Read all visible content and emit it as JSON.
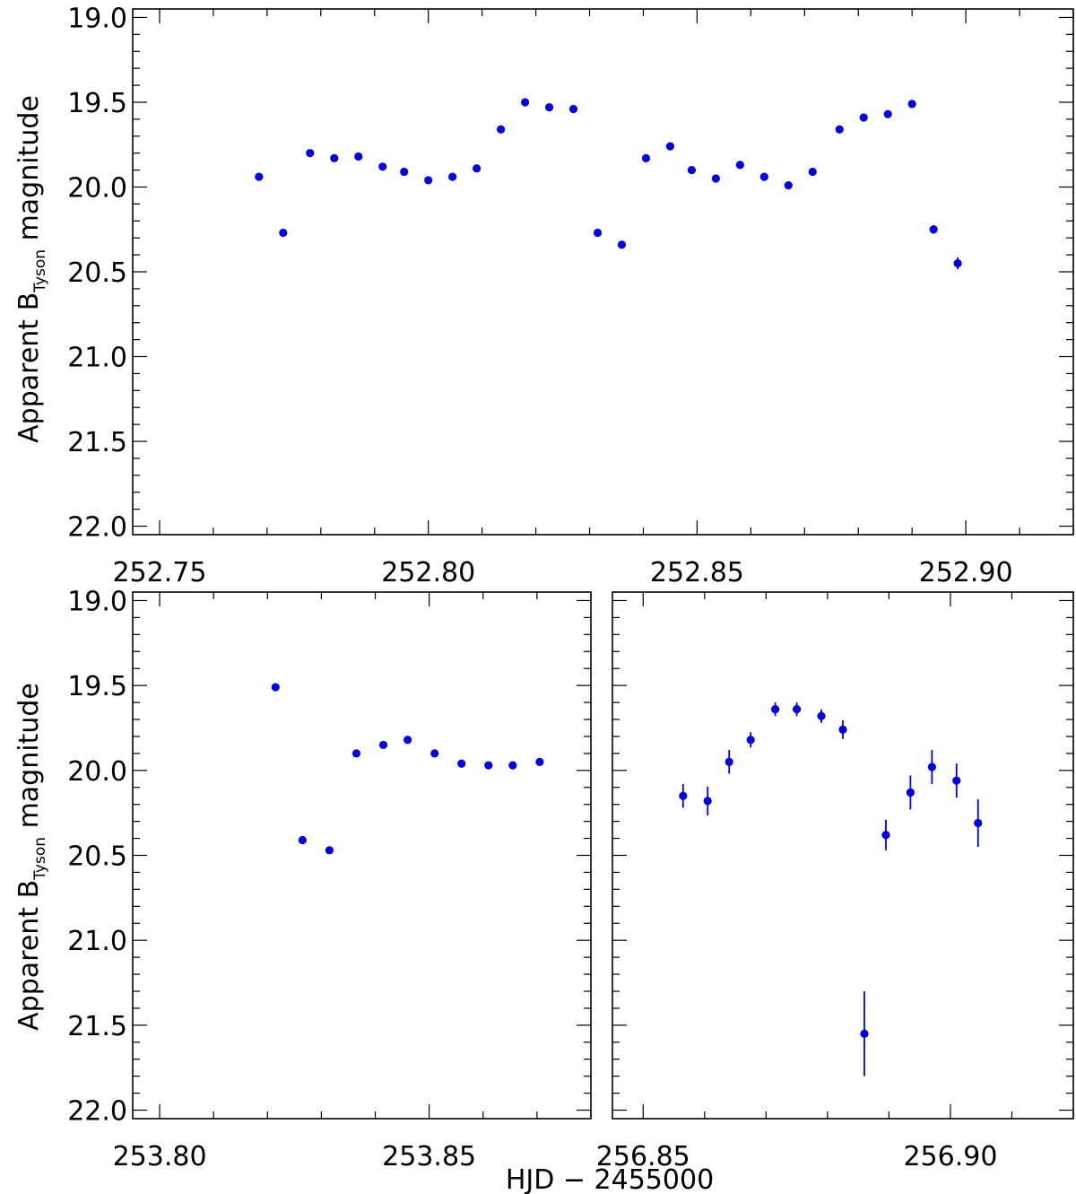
{
  "figure": {
    "xlabel": "HJD − 2455000",
    "ylabel_prefix": "Apparent B",
    "ylabel_sub": "Tyson",
    "ylabel_suffix": " magnitude",
    "point_color": "#0000e6"
  },
  "chart_data": [
    {
      "type": "scatter",
      "panel": "top",
      "xlim": [
        252.745,
        252.92
      ],
      "ylim": [
        22.05,
        18.95
      ],
      "y_inverted": true,
      "x_ticks": [
        "252.75",
        "252.80",
        "252.85",
        "252.90"
      ],
      "y_ticks": [
        "19.0",
        "19.5",
        "20.0",
        "20.5",
        "21.0",
        "21.5",
        "22.0"
      ],
      "series": [
        {
          "x": [
            252.7685,
            252.773,
            252.778,
            252.7825,
            252.787,
            252.7915,
            252.7955,
            252.8,
            252.8045,
            252.809,
            252.8135,
            252.818,
            252.8225,
            252.827,
            252.8315,
            252.836,
            252.8405,
            252.845,
            252.849,
            252.8535,
            252.858,
            252.8625,
            252.867,
            252.8715,
            252.8765,
            252.881,
            252.8855,
            252.89,
            252.894,
            252.8985
          ],
          "y": [
            19.94,
            20.27,
            19.8,
            19.83,
            19.82,
            19.88,
            19.91,
            19.96,
            19.94,
            19.89,
            19.66,
            19.5,
            19.53,
            19.54,
            20.27,
            20.34,
            19.83,
            19.76,
            19.9,
            19.95,
            19.87,
            19.94,
            19.99,
            19.91,
            19.66,
            19.59,
            19.57,
            19.51,
            20.25,
            20.45
          ],
          "yerr": [
            0.02,
            0.015,
            0.01,
            0.01,
            0.01,
            0.01,
            0.01,
            0.01,
            0.01,
            0.01,
            0.01,
            0.01,
            0.01,
            0.01,
            0.01,
            0.01,
            0.01,
            0.01,
            0.01,
            0.01,
            0.01,
            0.01,
            0.01,
            0.01,
            0.01,
            0.01,
            0.01,
            0.01,
            0.025,
            0.035
          ]
        }
      ]
    },
    {
      "type": "scatter",
      "panel": "bottom-left",
      "xlim": [
        253.795,
        253.88
      ],
      "ylim": [
        22.05,
        18.95
      ],
      "y_inverted": true,
      "x_ticks": [
        "253.80",
        "253.85"
      ],
      "y_ticks": [
        "19.0",
        "19.5",
        "20.0",
        "20.5",
        "21.0",
        "21.5",
        "22.0"
      ],
      "series": [
        {
          "x": [
            253.8215,
            253.8265,
            253.8315,
            253.8365,
            253.8415,
            253.846,
            253.851,
            253.856,
            253.861,
            253.8655,
            253.8705
          ],
          "y": [
            19.51,
            20.41,
            20.47,
            19.9,
            19.85,
            19.82,
            19.9,
            19.96,
            19.97,
            19.97,
            19.95
          ],
          "yerr": [
            0.01,
            0.01,
            0.01,
            0.01,
            0.01,
            0.01,
            0.01,
            0.01,
            0.01,
            0.01,
            0.01
          ]
        }
      ]
    },
    {
      "type": "scatter",
      "panel": "bottom-right",
      "xlim": [
        256.845,
        256.92
      ],
      "ylim": [
        22.05,
        18.95
      ],
      "y_inverted": true,
      "x_ticks": [
        "256.85",
        "256.90"
      ],
      "y_ticks": [],
      "series": [
        {
          "x": [
            256.8565,
            256.8605,
            256.864,
            256.8675,
            256.8715,
            256.875,
            256.879,
            256.8825,
            256.886,
            256.8895,
            256.8935,
            256.897,
            256.901,
            256.9045
          ],
          "y": [
            20.15,
            20.18,
            19.95,
            19.82,
            19.64,
            19.64,
            19.68,
            19.76,
            21.55,
            20.38,
            20.13,
            19.98,
            20.06,
            20.31
          ],
          "yerr": [
            0.07,
            0.085,
            0.07,
            0.045,
            0.04,
            0.04,
            0.04,
            0.055,
            0.25,
            0.09,
            0.1,
            0.1,
            0.1,
            0.14
          ]
        }
      ]
    }
  ]
}
